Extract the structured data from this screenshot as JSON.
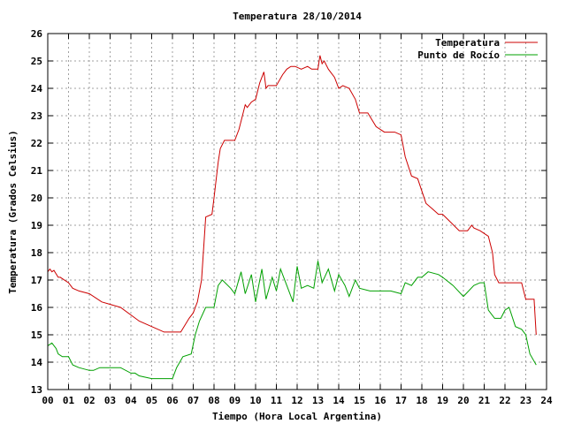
{
  "chart_data": {
    "type": "line",
    "title": "Temperatura 28/10/2014",
    "xlabel": "Tiempo (Hora Local Argentina)",
    "ylabel": "Temperatura (Grados Celsius)",
    "xlim": [
      0,
      24
    ],
    "ylim": [
      13,
      26
    ],
    "grid": true,
    "legend_position": "top-right",
    "x_ticks": [
      {
        "v": 0,
        "label": "00"
      },
      {
        "v": 1,
        "label": "01"
      },
      {
        "v": 2,
        "label": "02"
      },
      {
        "v": 3,
        "label": "03"
      },
      {
        "v": 4,
        "label": "04"
      },
      {
        "v": 5,
        "label": "05"
      },
      {
        "v": 6,
        "label": "06"
      },
      {
        "v": 7,
        "label": "07"
      },
      {
        "v": 8,
        "label": "08"
      },
      {
        "v": 9,
        "label": "09"
      },
      {
        "v": 10,
        "label": "10"
      },
      {
        "v": 11,
        "label": "11"
      },
      {
        "v": 12,
        "label": "12"
      },
      {
        "v": 13,
        "label": "13"
      },
      {
        "v": 14,
        "label": "14"
      },
      {
        "v": 15,
        "label": "15"
      },
      {
        "v": 16,
        "label": "16"
      },
      {
        "v": 17,
        "label": "17"
      },
      {
        "v": 18,
        "label": "18"
      },
      {
        "v": 19,
        "label": "19"
      },
      {
        "v": 20,
        "label": "20"
      },
      {
        "v": 21,
        "label": "21"
      },
      {
        "v": 22,
        "label": "22"
      },
      {
        "v": 23,
        "label": "23"
      },
      {
        "v": 24,
        "label": "24"
      }
    ],
    "y_ticks": [
      {
        "v": 13,
        "label": "13"
      },
      {
        "v": 14,
        "label": "14"
      },
      {
        "v": 15,
        "label": "15"
      },
      {
        "v": 16,
        "label": "16"
      },
      {
        "v": 17,
        "label": "17"
      },
      {
        "v": 18,
        "label": "18"
      },
      {
        "v": 19,
        "label": "19"
      },
      {
        "v": 20,
        "label": "20"
      },
      {
        "v": 21,
        "label": "21"
      },
      {
        "v": 22,
        "label": "22"
      },
      {
        "v": 23,
        "label": "23"
      },
      {
        "v": 24,
        "label": "24"
      },
      {
        "v": 25,
        "label": "25"
      },
      {
        "v": 26,
        "label": "26"
      }
    ],
    "series": [
      {
        "name": "Temperatura",
        "color": "#cc0000",
        "x": [
          0.0,
          0.1,
          0.2,
          0.3,
          0.5,
          0.6,
          1.0,
          1.2,
          1.5,
          2.0,
          2.6,
          3.5,
          4.4,
          5.0,
          5.6,
          6.3,
          6.4,
          6.8,
          7.0,
          7.2,
          7.4,
          7.6,
          7.9,
          8.0,
          8.2,
          8.3,
          8.5,
          9.0,
          9.2,
          9.5,
          9.6,
          9.8,
          10.0,
          10.2,
          10.4,
          10.5,
          10.6,
          10.8,
          11.0,
          11.3,
          11.5,
          11.7,
          11.9,
          12.2,
          12.5,
          12.7,
          13.0,
          13.1,
          13.2,
          13.3,
          13.5,
          13.8,
          14.0,
          14.2,
          14.5,
          14.8,
          15.0,
          15.4,
          15.8,
          16.2,
          16.7,
          17.0,
          17.2,
          17.5,
          17.8,
          18.2,
          18.5,
          18.8,
          19.0,
          19.4,
          19.8,
          20.2,
          20.4,
          20.5,
          20.8,
          21.0,
          21.2,
          21.4,
          21.5,
          21.7,
          22.0,
          22.2,
          22.5,
          22.8,
          23.0,
          23.2,
          23.4,
          23.5
        ],
        "y": [
          17.3,
          17.4,
          17.3,
          17.35,
          17.1,
          17.1,
          16.9,
          16.7,
          16.6,
          16.5,
          16.2,
          16.0,
          15.5,
          15.3,
          15.1,
          15.1,
          15.1,
          15.6,
          15.8,
          16.2,
          17.0,
          19.3,
          19.4,
          20.0,
          21.3,
          21.8,
          22.1,
          22.1,
          22.5,
          23.4,
          23.3,
          23.5,
          23.6,
          24.2,
          24.6,
          24.0,
          24.1,
          24.1,
          24.1,
          24.5,
          24.7,
          24.8,
          24.8,
          24.7,
          24.8,
          24.7,
          24.7,
          25.2,
          24.9,
          25.0,
          24.7,
          24.4,
          24.0,
          24.1,
          24.0,
          23.6,
          23.1,
          23.1,
          22.6,
          22.4,
          22.4,
          22.3,
          21.5,
          20.8,
          20.7,
          19.8,
          19.6,
          19.4,
          19.4,
          19.1,
          18.8,
          18.8,
          19.0,
          18.9,
          18.8,
          18.7,
          18.6,
          18.0,
          17.2,
          16.9,
          16.9,
          16.9,
          16.9,
          16.9,
          16.3,
          16.3,
          16.3,
          15.0
        ]
      },
      {
        "name": "Punto de Rocío",
        "color": "#00a000",
        "x": [
          0.0,
          0.2,
          0.4,
          0.5,
          0.7,
          1.0,
          1.2,
          1.5,
          2.0,
          2.2,
          2.5,
          3.0,
          3.5,
          4.0,
          4.2,
          4.4,
          5.0,
          5.5,
          6.0,
          6.2,
          6.5,
          6.9,
          7.1,
          7.3,
          7.6,
          7.8,
          8.0,
          8.2,
          8.4,
          8.8,
          9.0,
          9.3,
          9.5,
          9.8,
          10.0,
          10.3,
          10.5,
          10.8,
          11.0,
          11.2,
          11.5,
          11.8,
          12.0,
          12.2,
          12.5,
          12.8,
          13.0,
          13.2,
          13.5,
          13.8,
          14.0,
          14.3,
          14.5,
          14.8,
          15.0,
          15.5,
          16.0,
          16.5,
          17.0,
          17.2,
          17.5,
          17.8,
          18.0,
          18.3,
          18.8,
          19.0,
          19.5,
          20.0,
          20.5,
          20.8,
          21.0,
          21.2,
          21.5,
          21.8,
          22.0,
          22.2,
          22.5,
          22.8,
          23.0,
          23.2,
          23.5
        ],
        "y": [
          14.6,
          14.7,
          14.5,
          14.3,
          14.2,
          14.2,
          13.9,
          13.8,
          13.7,
          13.7,
          13.8,
          13.8,
          13.8,
          13.6,
          13.6,
          13.5,
          13.4,
          13.4,
          13.4,
          13.8,
          14.2,
          14.3,
          15.0,
          15.5,
          16.0,
          16.0,
          16.0,
          16.8,
          17.0,
          16.7,
          16.5,
          17.3,
          16.5,
          17.2,
          16.2,
          17.4,
          16.3,
          17.1,
          16.6,
          17.4,
          16.8,
          16.2,
          17.5,
          16.7,
          16.8,
          16.7,
          17.7,
          16.9,
          17.4,
          16.6,
          17.2,
          16.8,
          16.4,
          17.0,
          16.7,
          16.6,
          16.6,
          16.6,
          16.5,
          16.9,
          16.8,
          17.1,
          17.1,
          17.3,
          17.2,
          17.1,
          16.8,
          16.4,
          16.8,
          16.9,
          16.9,
          15.9,
          15.6,
          15.6,
          15.9,
          16.0,
          15.3,
          15.2,
          15.0,
          14.3,
          13.9
        ]
      }
    ]
  }
}
